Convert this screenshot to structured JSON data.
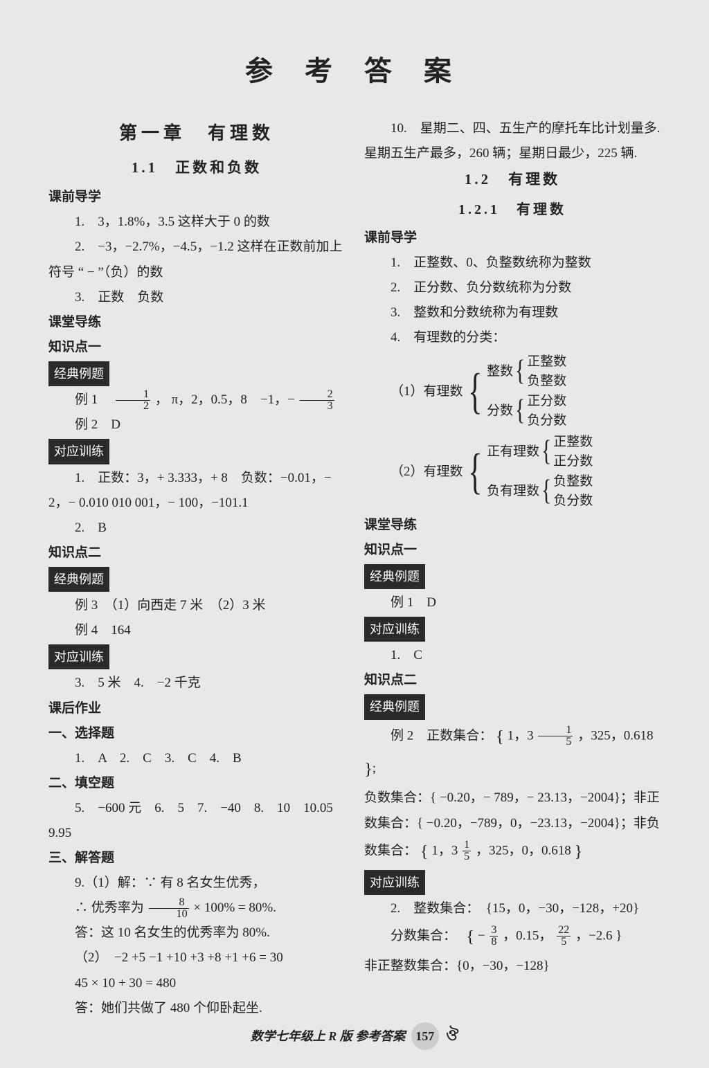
{
  "title": "参 考 答 案",
  "left": {
    "chapter": "第一章　有理数",
    "section": "1.1　正数和负数",
    "heads": {
      "preclass": "课前导学",
      "inclass": "课堂导练",
      "kp1": "知识点一",
      "kp2": "知识点二",
      "classic": "经典例题",
      "drill": "对应训练",
      "hw": "课后作业",
      "sel": "一、选择题",
      "fill": "二、填空题",
      "solve": "三、解答题"
    },
    "pre1": "1.　3，1.8%，3.5 这样大于 0 的数",
    "pre2": "2.　−3，−2.7%，−4.5，−1.2 这样在正数前加上符号 “ − ”（负）的数",
    "pre3": "3.　正数　负数",
    "ex1a": "例 1　",
    "ex1b": "， π，2，0.5，8　−1，−",
    "ex2": "例 2　D",
    "d1": "1.　正数：3，+ 3.333，+ 8　负数：−0.01，− 2，− 0.010 010 001，− 100，−101.1",
    "d2": "2.　B",
    "ex3": "例 3　（1）向西走 7 米　（2）3 米",
    "ex4": "例 4　164",
    "d3": "3.　5 米　4.　−2 千克",
    "hw1": "1.　A　2.　C　3.　C　4.　B",
    "hw2": "5.　−600 元　6.　5　7.　−40　8.　10　10.05　9.95",
    "q9a": "9.（1）解：∵ 有 8 名女生优秀，",
    "q9b": "∴ 优秀率为 ",
    "q9b2": " × 100% = 80%.",
    "q9c": "答：这 10 名女生的优秀率为 80%.",
    "q9d": "（2）　−2 +5 −1 +10 +3 +8 +1 +6 = 30",
    "q9e": "45 × 10 + 30 = 480",
    "q9f": "答：她们共做了 480 个仰卧起坐."
  },
  "right": {
    "top": "10.　星期二、四、五生产的摩托车比计划量多.　星期五生产最多，260 辆；星期日最少，225 辆.",
    "section": "1.2　有理数",
    "subsection": "1.2.1　有理数",
    "heads": {
      "preclass": "课前导学",
      "inclass": "课堂导练",
      "kp1": "知识点一",
      "kp2": "知识点二",
      "classic": "经典例题",
      "drill": "对应训练"
    },
    "p1": "1.　正整数、0、负整数统称为整数",
    "p2": "2.　正分数、负分数统称为分数",
    "p3": "3.　整数和分数统称为有理数",
    "p4": "4.　有理数的分类：",
    "b1_lead": "（1）有理数",
    "b1_a": "整数",
    "b1_a1": "正整数",
    "b1_a2": "负整数",
    "b1_b": "分数",
    "b1_b1": "正分数",
    "b1_b2": "负分数",
    "b2_lead": "（2）有理数",
    "b2_a": "正有理数",
    "b2_a1": "正整数",
    "b2_a2": "正分数",
    "b2_b": "负有理数",
    "b2_b1": "负整数",
    "b2_b2": "负分数",
    "ex1": "例 1　D",
    "d1": "1.　C",
    "ex2a": "例 2　正数集合：",
    "ex2a_set": "1，3 ",
    "ex2a_set2": "，325，0.618",
    "ex2b": "负数集合：{ −0.20，− 789，− 23.13，−2004}；非正数集合：{ −0.20，−789，0，−23.13，−2004}；非负数集合：",
    "ex2b_set": "1，3 ",
    "ex2b_set2": "，325，0，0.618",
    "d2a": "2.　整数集合：　{15，0，−30，−128，+20}",
    "d2b": "　　分数集合：　",
    "d2b_set": "− ",
    "d2b_set2": "，0.15，",
    "d2b_set3": "，−2.6",
    "d2c": "}　　非正整数集合：{0，−30，−128}"
  },
  "footer": {
    "text_left": "数学七年级上",
    "text_mid": " R 版 ",
    "text_right": "参考答案",
    "page": "157"
  }
}
